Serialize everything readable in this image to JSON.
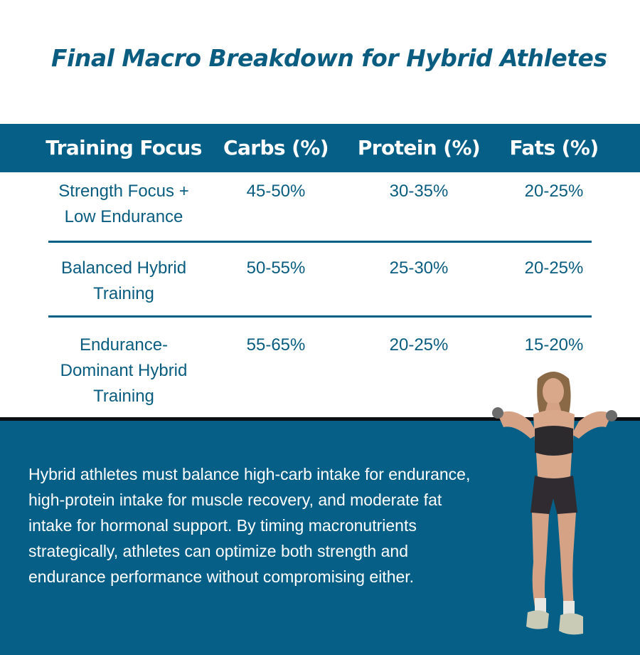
{
  "title": "Final Macro Breakdown for Hybrid Athletes",
  "table": {
    "headers": [
      "Training Focus",
      "Carbs (%)",
      "Protein (%)",
      "Fats (%)"
    ],
    "rows": [
      {
        "focus_lines": [
          "Strength Focus +",
          "Low Endurance"
        ],
        "carbs": "45-50%",
        "protein": "30-35%",
        "fats": "20-25%"
      },
      {
        "focus_lines": [
          "Balanced Hybrid",
          "Training"
        ],
        "carbs": "50-55%",
        "protein": "25-30%",
        "fats": "20-25%"
      },
      {
        "focus_lines": [
          "Endurance-",
          "Dominant Hybrid",
          "Training"
        ],
        "carbs": "55-65%",
        "protein": "20-25%",
        "fats": "15-20%"
      }
    ]
  },
  "summary_lines": [
    "Hybrid athletes must balance high-carb intake for endurance,",
    "high-protein intake for muscle recovery, and moderate fat",
    "intake for hormonal support. By timing macronutrients",
    "strategically, athletes can optimize both strength and",
    "endurance performance without compromising either."
  ],
  "colors": {
    "brand_blue": "#055f87",
    "title_blue": "#0a5d80",
    "band_border": "#0b0f14",
    "white": "#ffffff"
  }
}
